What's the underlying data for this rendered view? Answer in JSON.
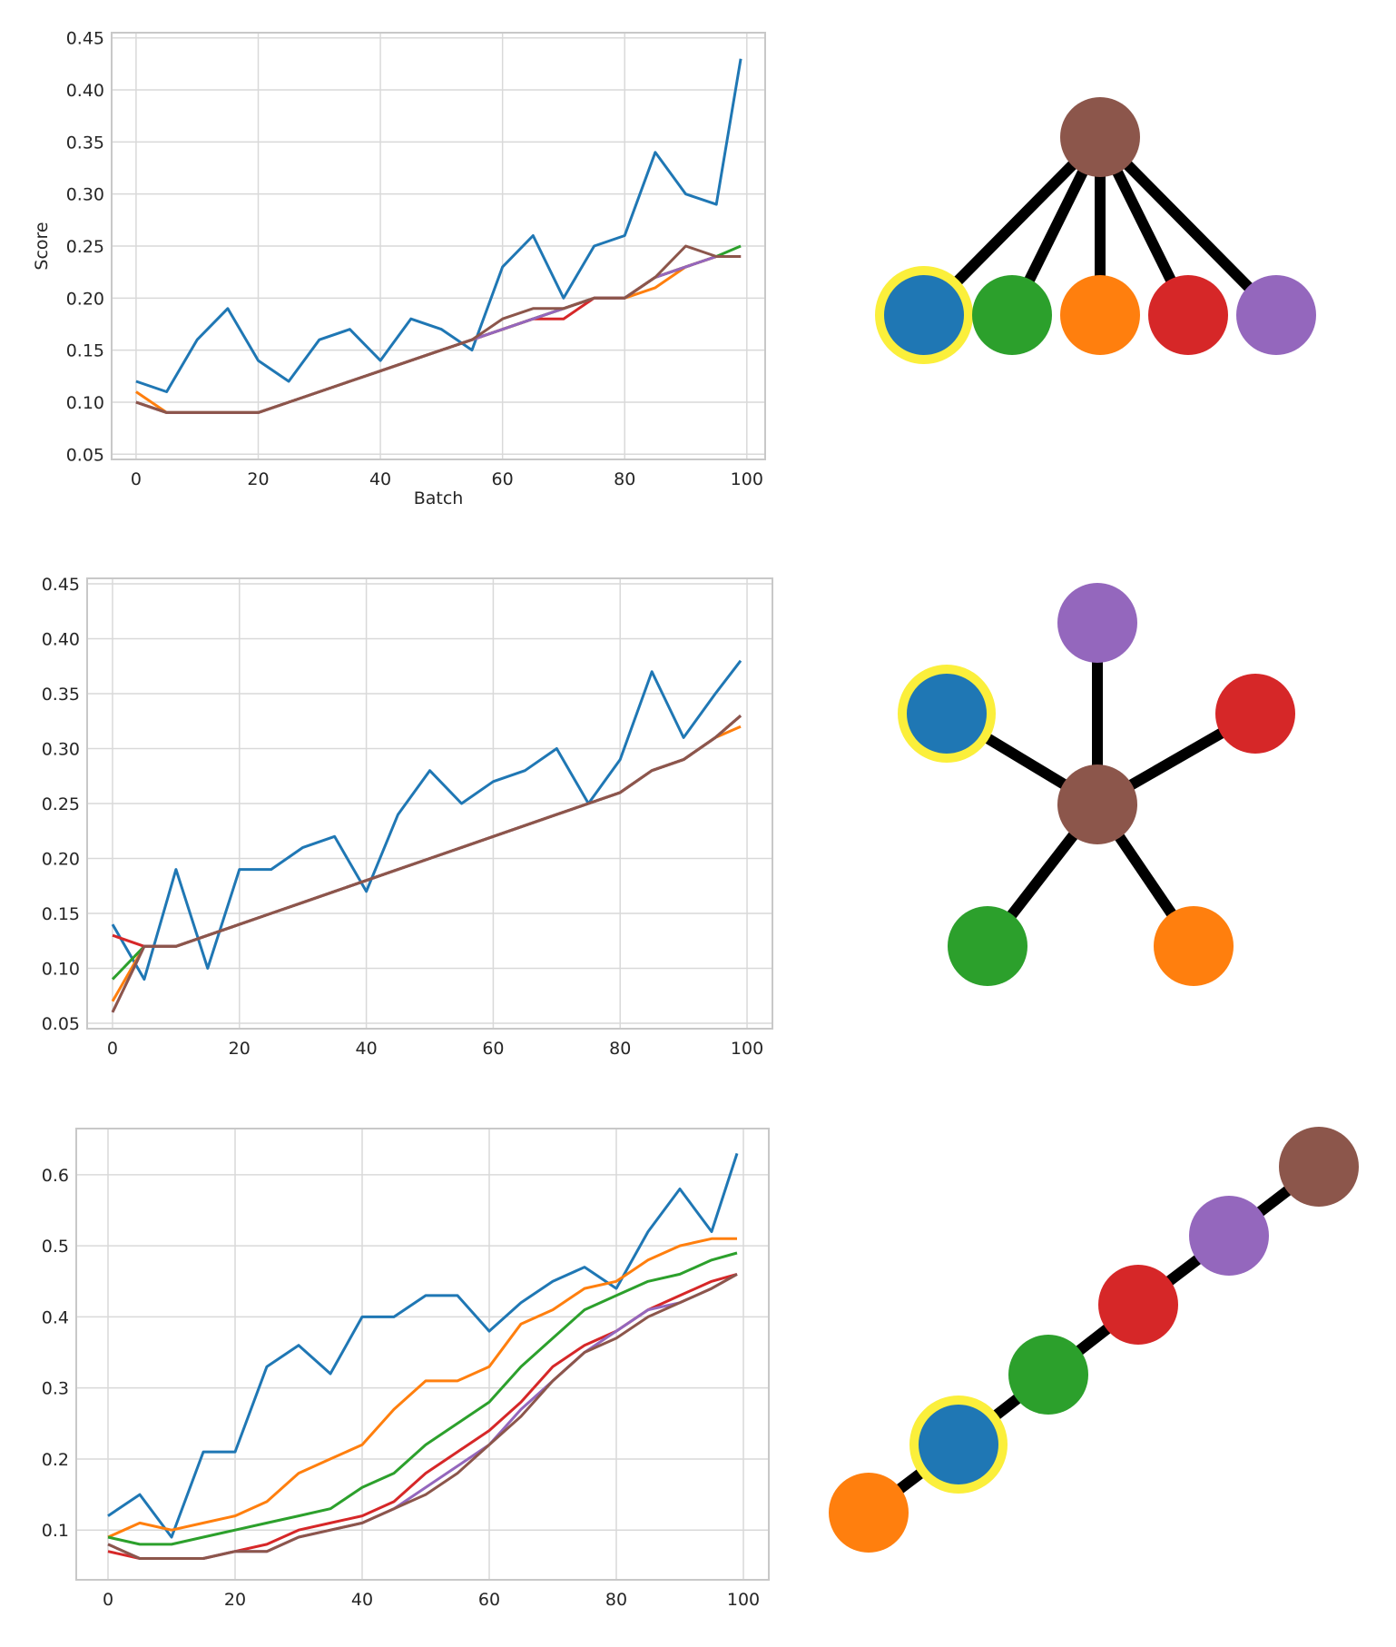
{
  "palette": {
    "blue": "#1f77b4",
    "orange": "#ff7f0e",
    "green": "#2ca02c",
    "red": "#d62728",
    "purple": "#9467bd",
    "brown": "#8c564b",
    "highlight": "#fbef3b",
    "edge": "#000000",
    "grid": "#d9d9d9",
    "frame": "#c8c8c8"
  },
  "chart_data": [
    {
      "type": "line",
      "title": "",
      "xlabel": "Batch",
      "ylabel": "Score",
      "xlim": [
        -4,
        103
      ],
      "ylim": [
        0.045,
        0.455
      ],
      "xticks": [
        "0",
        "20",
        "40",
        "60",
        "80",
        "100"
      ],
      "yticks": [
        "0.05",
        "0.10",
        "0.15",
        "0.20",
        "0.25",
        "0.30",
        "0.35",
        "0.40",
        "0.45"
      ],
      "grid": true,
      "x": [
        0,
        5,
        10,
        15,
        20,
        25,
        30,
        35,
        40,
        45,
        50,
        55,
        60,
        65,
        70,
        75,
        80,
        85,
        90,
        95,
        99
      ],
      "series": [
        {
          "color": "blue",
          "values": [
            0.12,
            0.11,
            0.16,
            0.19,
            0.14,
            0.12,
            0.16,
            0.17,
            0.14,
            0.18,
            0.17,
            0.15,
            0.23,
            0.26,
            0.2,
            0.25,
            0.26,
            0.34,
            0.3,
            0.29,
            0.43
          ]
        },
        {
          "color": "orange",
          "values": [
            0.11,
            0.09,
            0.09,
            0.09,
            0.09,
            0.1,
            0.11,
            0.12,
            0.13,
            0.14,
            0.15,
            0.16,
            0.17,
            0.18,
            0.19,
            0.2,
            0.2,
            0.21,
            0.23,
            0.24,
            0.24
          ]
        },
        {
          "color": "green",
          "values": [
            0.1,
            0.09,
            0.09,
            0.09,
            0.09,
            0.1,
            0.11,
            0.12,
            0.13,
            0.14,
            0.15,
            0.16,
            0.17,
            0.18,
            0.19,
            0.2,
            0.2,
            0.22,
            0.23,
            0.24,
            0.25
          ]
        },
        {
          "color": "red",
          "values": [
            0.1,
            0.09,
            0.09,
            0.09,
            0.09,
            0.1,
            0.11,
            0.12,
            0.13,
            0.14,
            0.15,
            0.16,
            0.17,
            0.18,
            0.18,
            0.2,
            0.2,
            0.22,
            0.23,
            0.24,
            0.24
          ]
        },
        {
          "color": "purple",
          "values": [
            0.1,
            0.09,
            0.09,
            0.09,
            0.09,
            0.1,
            0.11,
            0.12,
            0.13,
            0.14,
            0.15,
            0.16,
            0.17,
            0.18,
            0.19,
            0.2,
            0.2,
            0.22,
            0.23,
            0.24,
            0.24
          ]
        },
        {
          "color": "brown",
          "values": [
            0.1,
            0.09,
            0.09,
            0.09,
            0.09,
            0.1,
            0.11,
            0.12,
            0.13,
            0.14,
            0.15,
            0.16,
            0.18,
            0.19,
            0.19,
            0.2,
            0.2,
            0.22,
            0.25,
            0.24,
            0.24
          ]
        }
      ]
    },
    {
      "type": "line",
      "title": "",
      "xlabel": "",
      "ylabel": "",
      "xlim": [
        -4,
        104
      ],
      "ylim": [
        0.045,
        0.455
      ],
      "xticks": [
        "0",
        "20",
        "40",
        "60",
        "80",
        "100"
      ],
      "yticks": [
        "0.05",
        "0.10",
        "0.15",
        "0.20",
        "0.25",
        "0.30",
        "0.35",
        "0.40",
        "0.45"
      ],
      "grid": true,
      "x": [
        0,
        5,
        10,
        15,
        20,
        25,
        30,
        35,
        40,
        45,
        50,
        55,
        60,
        65,
        70,
        75,
        80,
        85,
        90,
        95,
        99
      ],
      "series": [
        {
          "color": "blue",
          "values": [
            0.14,
            0.09,
            0.19,
            0.1,
            0.19,
            0.19,
            0.21,
            0.22,
            0.17,
            0.24,
            0.28,
            0.25,
            0.27,
            0.28,
            0.3,
            0.25,
            0.29,
            0.37,
            0.31,
            0.35,
            0.38
          ]
        },
        {
          "color": "orange",
          "values": [
            0.07,
            0.12,
            0.12,
            0.13,
            0.14,
            0.15,
            0.16,
            0.17,
            0.18,
            0.19,
            0.2,
            0.21,
            0.22,
            0.23,
            0.24,
            0.25,
            0.26,
            0.28,
            0.29,
            0.31,
            0.32
          ]
        },
        {
          "color": "green",
          "values": [
            0.09,
            0.12,
            0.12,
            0.13,
            0.14,
            0.15,
            0.16,
            0.17,
            0.18,
            0.19,
            0.2,
            0.21,
            0.22,
            0.23,
            0.24,
            0.25,
            0.26,
            0.28,
            0.29,
            0.31,
            0.33
          ]
        },
        {
          "color": "red",
          "values": [
            0.13,
            0.12,
            0.12,
            0.13,
            0.14,
            0.15,
            0.16,
            0.17,
            0.18,
            0.19,
            0.2,
            0.21,
            0.22,
            0.23,
            0.24,
            0.25,
            0.26,
            0.28,
            0.29,
            0.31,
            0.33
          ]
        },
        {
          "color": "purple",
          "values": [
            0.06,
            0.12,
            0.12,
            0.13,
            0.14,
            0.15,
            0.16,
            0.17,
            0.18,
            0.19,
            0.2,
            0.21,
            0.22,
            0.23,
            0.24,
            0.25,
            0.26,
            0.28,
            0.29,
            0.31,
            0.33
          ]
        },
        {
          "color": "brown",
          "values": [
            0.06,
            0.12,
            0.12,
            0.13,
            0.14,
            0.15,
            0.16,
            0.17,
            0.18,
            0.19,
            0.2,
            0.21,
            0.22,
            0.23,
            0.24,
            0.25,
            0.26,
            0.28,
            0.29,
            0.31,
            0.33
          ]
        }
      ]
    },
    {
      "type": "line",
      "title": "",
      "xlabel": "",
      "ylabel": "",
      "xlim": [
        -5,
        104
      ],
      "ylim": [
        0.03,
        0.665
      ],
      "xticks": [
        "0",
        "20",
        "40",
        "60",
        "80",
        "100"
      ],
      "yticks": [
        "0.1",
        "0.2",
        "0.3",
        "0.4",
        "0.5",
        "0.6"
      ],
      "grid": true,
      "x": [
        0,
        5,
        10,
        15,
        20,
        25,
        30,
        35,
        40,
        45,
        50,
        55,
        60,
        65,
        70,
        75,
        80,
        85,
        90,
        95,
        99
      ],
      "series": [
        {
          "color": "blue",
          "values": [
            0.12,
            0.15,
            0.09,
            0.21,
            0.21,
            0.33,
            0.36,
            0.32,
            0.4,
            0.4,
            0.43,
            0.43,
            0.38,
            0.42,
            0.45,
            0.47,
            0.44,
            0.52,
            0.58,
            0.52,
            0.63
          ]
        },
        {
          "color": "orange",
          "values": [
            0.09,
            0.11,
            0.1,
            0.11,
            0.12,
            0.14,
            0.18,
            0.2,
            0.22,
            0.27,
            0.31,
            0.31,
            0.33,
            0.39,
            0.41,
            0.44,
            0.45,
            0.48,
            0.5,
            0.51,
            0.51
          ]
        },
        {
          "color": "green",
          "values": [
            0.09,
            0.08,
            0.08,
            0.09,
            0.1,
            0.11,
            0.12,
            0.13,
            0.16,
            0.18,
            0.22,
            0.25,
            0.28,
            0.33,
            0.37,
            0.41,
            0.43,
            0.45,
            0.46,
            0.48,
            0.49
          ]
        },
        {
          "color": "red",
          "values": [
            0.07,
            0.06,
            0.06,
            0.06,
            0.07,
            0.08,
            0.1,
            0.11,
            0.12,
            0.14,
            0.18,
            0.21,
            0.24,
            0.28,
            0.33,
            0.36,
            0.38,
            0.41,
            0.43,
            0.45,
            0.46
          ]
        },
        {
          "color": "purple",
          "values": [
            0.08,
            0.06,
            0.06,
            0.06,
            0.07,
            0.07,
            0.09,
            0.1,
            0.11,
            0.13,
            0.16,
            0.19,
            0.22,
            0.27,
            0.31,
            0.35,
            0.38,
            0.41,
            0.42,
            0.44,
            0.46
          ]
        },
        {
          "color": "brown",
          "values": [
            0.08,
            0.06,
            0.06,
            0.06,
            0.07,
            0.07,
            0.09,
            0.1,
            0.11,
            0.13,
            0.15,
            0.18,
            0.22,
            0.26,
            0.31,
            0.35,
            0.37,
            0.4,
            0.42,
            0.44,
            0.46
          ]
        }
      ]
    }
  ],
  "graphs": [
    {
      "nodes": [
        {
          "id": "brown",
          "color": "brown",
          "highlight": false
        },
        {
          "id": "blue",
          "color": "blue",
          "highlight": true
        },
        {
          "id": "green",
          "color": "green",
          "highlight": false
        },
        {
          "id": "orange",
          "color": "orange",
          "highlight": false
        },
        {
          "id": "red",
          "color": "red",
          "highlight": false
        },
        {
          "id": "purple",
          "color": "purple",
          "highlight": false
        }
      ],
      "edges": [
        [
          "brown",
          "blue"
        ],
        [
          "brown",
          "green"
        ],
        [
          "brown",
          "orange"
        ],
        [
          "brown",
          "red"
        ],
        [
          "brown",
          "purple"
        ]
      ]
    },
    {
      "nodes": [
        {
          "id": "brown",
          "color": "brown",
          "highlight": false
        },
        {
          "id": "purple",
          "color": "purple",
          "highlight": false
        },
        {
          "id": "blue",
          "color": "blue",
          "highlight": true
        },
        {
          "id": "red",
          "color": "red",
          "highlight": false
        },
        {
          "id": "green",
          "color": "green",
          "highlight": false
        },
        {
          "id": "orange",
          "color": "orange",
          "highlight": false
        }
      ],
      "edges": [
        [
          "brown",
          "purple"
        ],
        [
          "brown",
          "blue"
        ],
        [
          "brown",
          "red"
        ],
        [
          "brown",
          "green"
        ],
        [
          "brown",
          "orange"
        ]
      ]
    },
    {
      "nodes": [
        {
          "id": "orange",
          "color": "orange",
          "highlight": false
        },
        {
          "id": "blue",
          "color": "blue",
          "highlight": true
        },
        {
          "id": "green",
          "color": "green",
          "highlight": false
        },
        {
          "id": "red",
          "color": "red",
          "highlight": false
        },
        {
          "id": "purple",
          "color": "purple",
          "highlight": false
        },
        {
          "id": "brown",
          "color": "brown",
          "highlight": false
        }
      ],
      "edges": [
        [
          "orange",
          "blue"
        ],
        [
          "blue",
          "green"
        ],
        [
          "green",
          "red"
        ],
        [
          "red",
          "purple"
        ],
        [
          "purple",
          "brown"
        ]
      ]
    }
  ]
}
